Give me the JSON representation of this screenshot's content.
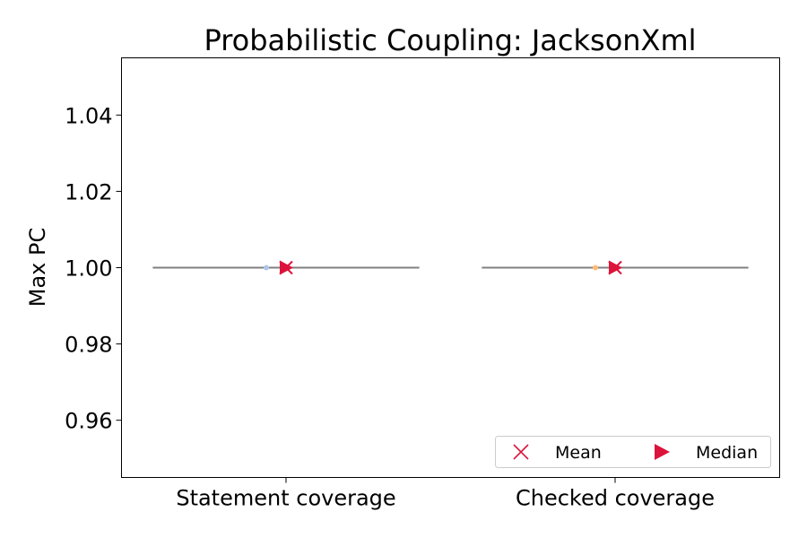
{
  "chart_data": {
    "type": "violin",
    "title": "Probabilistic Coupling: JacksonXml",
    "xlabel": "",
    "ylabel": "Max PC",
    "categories": [
      "Statement coverage",
      "Checked coverage"
    ],
    "ylim": [
      0.945,
      1.055
    ],
    "yticks": [
      0.96,
      0.98,
      1.0,
      1.02,
      1.04
    ],
    "ytick_labels": [
      "0.96",
      "0.98",
      "1.00",
      "1.02",
      "1.04"
    ],
    "series": [
      {
        "category": "Statement coverage",
        "values": [
          1.0
        ],
        "mean": 1.0,
        "median": 1.0,
        "point_color": "#aec7e8"
      },
      {
        "category": "Checked coverage",
        "values": [
          1.0
        ],
        "mean": 1.0,
        "median": 1.0,
        "point_color": "#ffbb78"
      }
    ],
    "legend": {
      "position": "lower-right",
      "entries": [
        {
          "label": "Mean",
          "marker": "x-marker-icon"
        },
        {
          "label": "Median",
          "marker": "triangle-right-icon"
        }
      ]
    },
    "colors": {
      "marker": "#dc143c",
      "violin_line": "#808080"
    },
    "grid": false
  }
}
